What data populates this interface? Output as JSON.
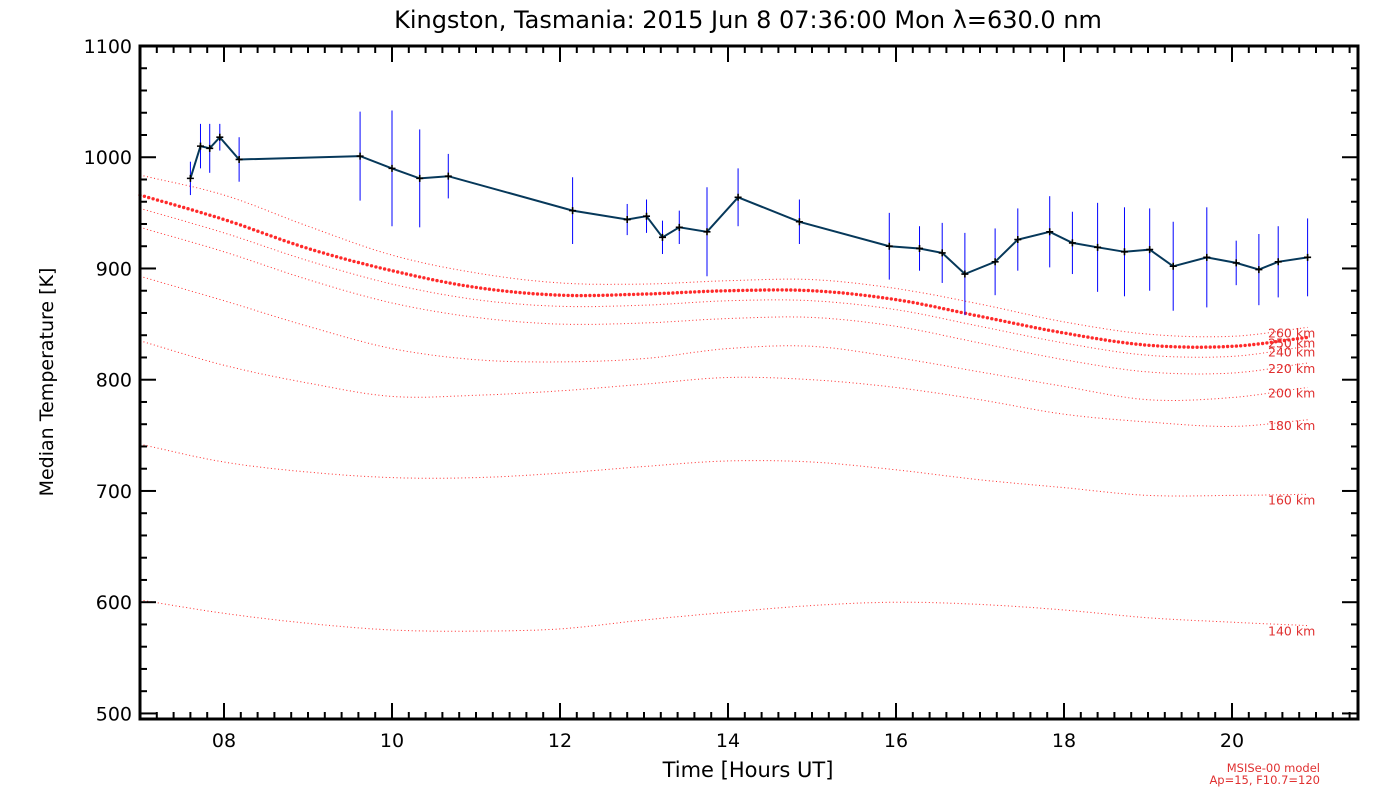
{
  "chart_data": {
    "type": "line",
    "title": "Kingston, Tasmania: 2015 Jun  8 07:36:00 Mon λ=630.0 nm",
    "xlabel": "Time [Hours UT]",
    "ylabel": "Median Temperature [K]",
    "xlim": [
      7.0,
      21.5
    ],
    "ylim": [
      495,
      1100
    ],
    "xticks": [
      8,
      10,
      12,
      14,
      16,
      18,
      20
    ],
    "xtick_labels": [
      "08",
      "10",
      "12",
      "14",
      "16",
      "18",
      "20"
    ],
    "yticks": [
      500,
      600,
      700,
      800,
      900,
      1000,
      1100
    ],
    "ytick_labels": [
      "500",
      "600",
      "700",
      "800",
      "900",
      "1000",
      "1100"
    ],
    "grid": false,
    "colors": {
      "measurement_line": "#06385a",
      "error_bars": "#0000ff",
      "markers": "#000000",
      "model": "#ff2a2a",
      "model_text": "#e03030"
    },
    "measurements": [
      {
        "x": 7.6,
        "y": 981,
        "err": 15
      },
      {
        "x": 7.72,
        "y": 1010,
        "err": 20
      },
      {
        "x": 7.83,
        "y": 1008,
        "err": 22
      },
      {
        "x": 7.95,
        "y": 1018,
        "err": 12
      },
      {
        "x": 8.18,
        "y": 998,
        "err": 20
      },
      {
        "x": 9.62,
        "y": 1001,
        "err": 40
      },
      {
        "x": 10.0,
        "y": 990,
        "err": 52
      },
      {
        "x": 10.33,
        "y": 981,
        "err": 44
      },
      {
        "x": 10.67,
        "y": 983,
        "err": 20
      },
      {
        "x": 12.15,
        "y": 952,
        "err": 30
      },
      {
        "x": 12.8,
        "y": 944,
        "err": 14
      },
      {
        "x": 13.03,
        "y": 947,
        "err": 15
      },
      {
        "x": 13.22,
        "y": 928,
        "err": 15
      },
      {
        "x": 13.42,
        "y": 937,
        "err": 15
      },
      {
        "x": 13.75,
        "y": 933,
        "err": 40
      },
      {
        "x": 14.12,
        "y": 964,
        "err": 26
      },
      {
        "x": 14.85,
        "y": 942,
        "err": 20
      },
      {
        "x": 15.92,
        "y": 920,
        "err": 30
      },
      {
        "x": 16.28,
        "y": 918,
        "err": 20
      },
      {
        "x": 16.55,
        "y": 914,
        "err": 27
      },
      {
        "x": 16.82,
        "y": 895,
        "err": 37
      },
      {
        "x": 17.18,
        "y": 906,
        "err": 30
      },
      {
        "x": 17.45,
        "y": 926,
        "err": 28
      },
      {
        "x": 17.83,
        "y": 933,
        "err": 32
      },
      {
        "x": 18.1,
        "y": 923,
        "err": 28
      },
      {
        "x": 18.4,
        "y": 919,
        "err": 40
      },
      {
        "x": 18.72,
        "y": 915,
        "err": 40
      },
      {
        "x": 19.02,
        "y": 917,
        "err": 37
      },
      {
        "x": 19.3,
        "y": 902,
        "err": 40
      },
      {
        "x": 19.7,
        "y": 910,
        "err": 45
      },
      {
        "x": 20.05,
        "y": 905,
        "err": 20
      },
      {
        "x": 20.32,
        "y": 899,
        "err": 32
      },
      {
        "x": 20.55,
        "y": 906,
        "err": 32
      },
      {
        "x": 20.9,
        "y": 910,
        "err": 35
      }
    ],
    "model_x": [
      7.0,
      8.0,
      9.0,
      10.0,
      11.0,
      12.0,
      13.0,
      14.0,
      15.0,
      16.0,
      17.0,
      18.0,
      19.0,
      20.0,
      20.9
    ],
    "model_curves": [
      {
        "label": "260 km",
        "highlight": false,
        "values": [
          984,
          966,
          938,
          912,
          896,
          887,
          886,
          889,
          890,
          882,
          868,
          852,
          841,
          839,
          847
        ]
      },
      {
        "label": "250 km",
        "highlight": true,
        "values": [
          966,
          944,
          918,
          898,
          883,
          876,
          877,
          880,
          880,
          872,
          857,
          842,
          831,
          830,
          838
        ]
      },
      {
        "label": "240 km",
        "highlight": false,
        "values": [
          954,
          932,
          907,
          886,
          872,
          866,
          867,
          871,
          871,
          863,
          848,
          833,
          822,
          821,
          830
        ]
      },
      {
        "label": "220 km",
        "highlight": false,
        "values": [
          937,
          915,
          890,
          869,
          856,
          850,
          851,
          855,
          856,
          848,
          833,
          818,
          807,
          806,
          815
        ]
      },
      {
        "label": "200 km",
        "highlight": false,
        "values": [
          893,
          871,
          848,
          828,
          818,
          816,
          819,
          828,
          830,
          820,
          807,
          794,
          782,
          784,
          793
        ]
      },
      {
        "label": "180 km",
        "highlight": false,
        "values": [
          835,
          813,
          797,
          785,
          786,
          790,
          796,
          802,
          800,
          793,
          782,
          769,
          762,
          758,
          764
        ]
      },
      {
        "label": "160 km",
        "highlight": false,
        "values": [
          742,
          726,
          717,
          712,
          712,
          716,
          722,
          727,
          726,
          719,
          710,
          703,
          696,
          696,
          697
        ]
      },
      {
        "label": "140 km",
        "highlight": false,
        "values": [
          602,
          590,
          581,
          575,
          574,
          576,
          584,
          591,
          597,
          600,
          598,
          593,
          586,
          582,
          579
        ]
      }
    ],
    "model_note_line1": "MSISe-00 model",
    "model_note_line2": "Ap=15, F10.7=120"
  }
}
